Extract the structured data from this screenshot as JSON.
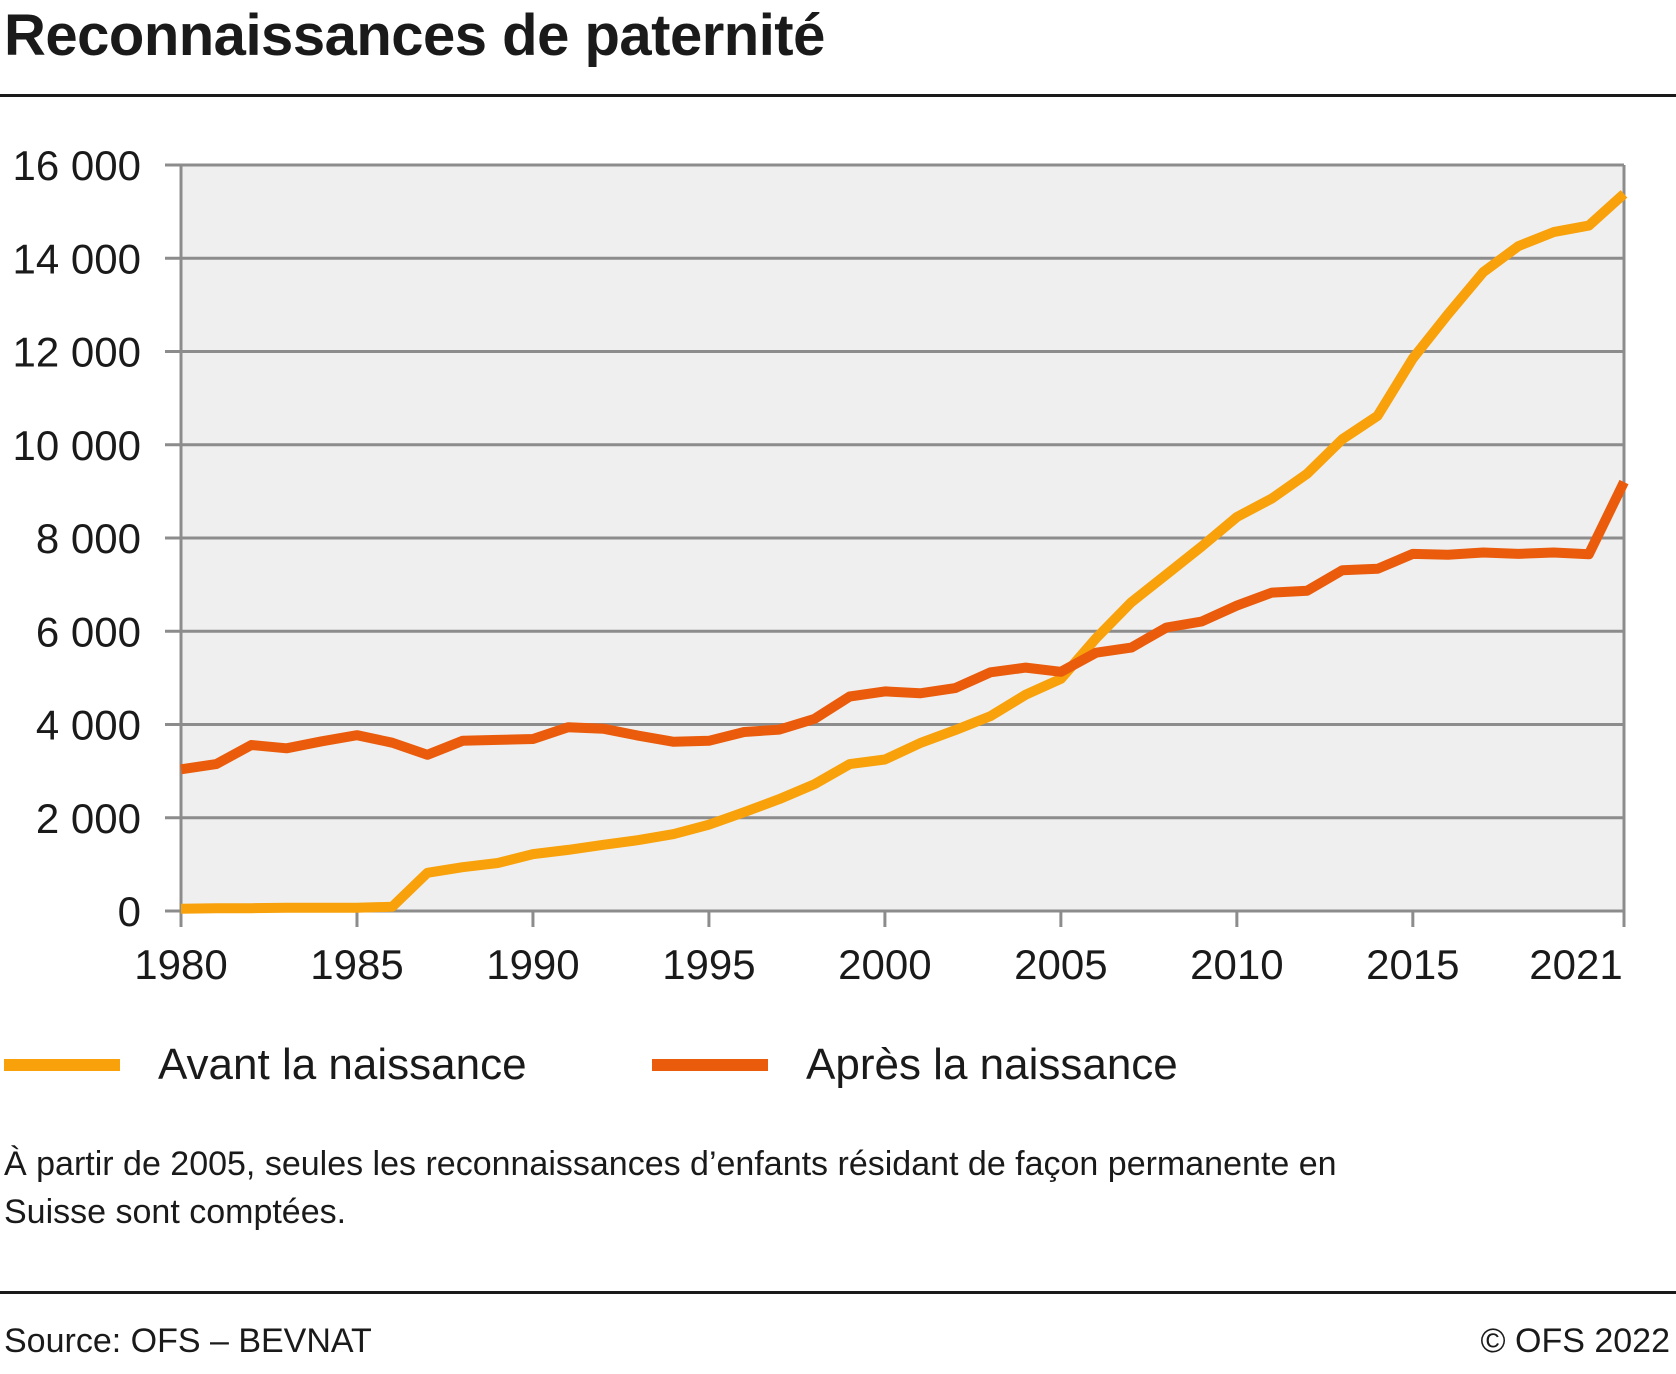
{
  "header": {
    "title": "Reconnaissances de paternité"
  },
  "chart_data": {
    "type": "line",
    "title": "Reconnaissances de paternité",
    "xlabel": "",
    "ylabel": "",
    "xlim": [
      1980,
      2021
    ],
    "ylim": [
      0,
      16000
    ],
    "grid": true,
    "legend_position": "bottom",
    "x_ticks": [
      1980,
      1985,
      1990,
      1995,
      2000,
      2005,
      2010,
      2015,
      2021
    ],
    "x_tick_labels": [
      "1980",
      "1985",
      "1990",
      "1995",
      "2000",
      "2005",
      "2010",
      "2015",
      "2021"
    ],
    "y_ticks": [
      0,
      2000,
      4000,
      6000,
      8000,
      10000,
      12000,
      14000,
      16000
    ],
    "y_tick_labels": [
      "0",
      "2 000",
      "4 000",
      "6 000",
      "8 000",
      "10 000",
      "12 000",
      "14 000",
      "16 000"
    ],
    "x": [
      1980,
      1981,
      1982,
      1983,
      1984,
      1985,
      1986,
      1987,
      1988,
      1989,
      1990,
      1991,
      1992,
      1993,
      1994,
      1995,
      1996,
      1997,
      1998,
      1999,
      2000,
      2001,
      2002,
      2003,
      2004,
      2005,
      2006,
      2007,
      2008,
      2009,
      2010,
      2011,
      2012,
      2013,
      2014,
      2015,
      2016,
      2017,
      2018,
      2019,
      2020,
      2021
    ],
    "series": [
      {
        "name": "Avant la naissance",
        "color": "#f8a10a",
        "values": [
          50,
          60,
          60,
          70,
          70,
          70,
          90,
          820,
          940,
          1030,
          1220,
          1310,
          1420,
          1520,
          1650,
          1850,
          2120,
          2400,
          2720,
          3150,
          3250,
          3600,
          3880,
          4180,
          4640,
          4980,
          5850,
          6620,
          7220,
          7820,
          8450,
          8850,
          9380,
          10120,
          10620,
          11850,
          12800,
          13700,
          14260,
          14560,
          14700,
          15380
        ]
      },
      {
        "name": "Après la naissance",
        "color": "#ea5c0c",
        "values": [
          3040,
          3150,
          3560,
          3490,
          3640,
          3770,
          3610,
          3350,
          3650,
          3670,
          3690,
          3940,
          3910,
          3760,
          3630,
          3650,
          3840,
          3890,
          4120,
          4600,
          4710,
          4670,
          4780,
          5120,
          5220,
          5130,
          5540,
          5650,
          6080,
          6210,
          6550,
          6830,
          6870,
          7310,
          7340,
          7660,
          7640,
          7690,
          7660,
          7690,
          7650,
          9200
        ]
      }
    ]
  },
  "note": "À partir de 2005, seules les reconnaissances d’enfants résidant de façon permanente en Suisse sont comptées.",
  "footer": {
    "source": "Source: OFS – BEVNAT",
    "copyright": "© OFS 2022"
  }
}
